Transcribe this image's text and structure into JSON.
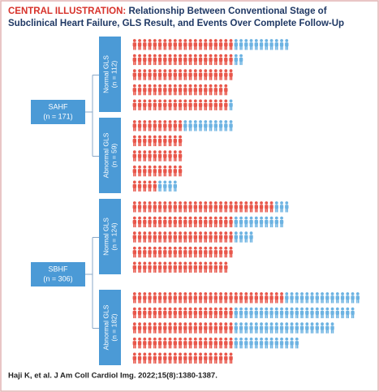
{
  "header": {
    "label": "CENTRAL ILLUSTRATION:",
    "title_lines": [
      "Relationship Between Conventional Stage of",
      "Subclinical Heart Failure, GLS Result, and Events Over Complete Follow-Up"
    ]
  },
  "colors": {
    "red": "#e8574b",
    "blue": "#6db3e2",
    "box": "#4b9ad6"
  },
  "groups": [
    {
      "label": "SAHF",
      "n": "(n = 171)",
      "subgroups": [
        {
          "label": "Normal GLS",
          "n": "(n = 112)",
          "rows": [
            {
              "red": 20,
              "blue": 11
            },
            {
              "red": 20,
              "blue": 2
            },
            {
              "red": 20,
              "blue": 0
            },
            {
              "red": 19,
              "blue": 0
            },
            {
              "red": 19,
              "blue": 1
            }
          ]
        },
        {
          "label": "Abnormal GLS",
          "n": "(n = 59)",
          "rows": [
            {
              "red": 10,
              "blue": 10
            },
            {
              "red": 10,
              "blue": 0
            },
            {
              "red": 10,
              "blue": 0
            },
            {
              "red": 10,
              "blue": 0
            },
            {
              "red": 5,
              "blue": 4
            }
          ]
        }
      ]
    },
    {
      "label": "SBHF",
      "n": "(n = 306)",
      "subgroups": [
        {
          "label": "Normal GLS",
          "n": "(n = 124)",
          "rows": [
            {
              "red": 28,
              "blue": 3
            },
            {
              "red": 20,
              "blue": 10
            },
            {
              "red": 20,
              "blue": 4
            },
            {
              "red": 20,
              "blue": 0
            },
            {
              "red": 19,
              "blue": 0
            }
          ]
        },
        {
          "label": "Abnormal GLS",
          "n": "(n = 182)",
          "rows": [
            {
              "red": 30,
              "blue": 15
            },
            {
              "red": 20,
              "blue": 24
            },
            {
              "red": 20,
              "blue": 20
            },
            {
              "red": 20,
              "blue": 13
            },
            {
              "red": 20,
              "blue": 0
            }
          ]
        }
      ]
    }
  ],
  "footer": "Haji K, et al. J Am Coll Cardiol Img. 2022;15(8):1380-1387."
}
